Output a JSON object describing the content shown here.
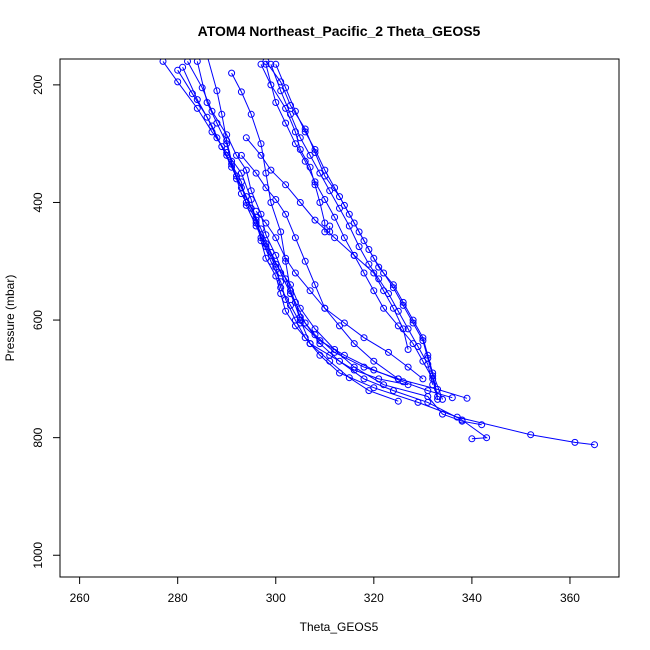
{
  "chart_data": {
    "type": "line",
    "title": "ATOM4 Northeast_Pacific_2 Theta_GEOS5",
    "xlabel": "Theta_GEOS5",
    "ylabel": "Pressure (mbar)",
    "xlim": [
      256,
      370
    ],
    "ylim": [
      1037,
      156
    ],
    "y_reversed": true,
    "x_ticks": [
      260,
      280,
      300,
      320,
      340,
      360
    ],
    "y_ticks": [
      200,
      400,
      600,
      800,
      1000
    ],
    "grid": false,
    "legend": "none",
    "marker": "open-circle",
    "color": "#0000ff",
    "series": [
      {
        "points": [
          [
            286,
            150
          ],
          [
            288,
            210
          ],
          [
            289,
            250
          ],
          [
            290,
            295
          ],
          [
            291,
            330
          ],
          [
            292,
            360
          ],
          [
            293,
            385
          ],
          [
            294,
            400
          ],
          [
            296,
            430
          ],
          [
            297,
            465
          ],
          [
            298,
            495
          ],
          [
            300,
            525
          ],
          [
            301,
            555
          ],
          [
            302,
            585
          ],
          [
            304,
            610
          ],
          [
            307,
            640
          ],
          [
            311,
            660
          ],
          [
            316,
            685
          ],
          [
            321,
            700
          ],
          [
            327,
            710
          ]
        ]
      },
      {
        "points": [
          [
            284,
            160
          ],
          [
            286,
            230
          ],
          [
            288,
            265
          ],
          [
            290,
            300
          ],
          [
            291,
            335
          ],
          [
            293,
            365
          ],
          [
            294,
            405
          ],
          [
            296,
            440
          ],
          [
            298,
            475
          ],
          [
            300,
            510
          ],
          [
            301,
            545
          ],
          [
            303,
            575
          ],
          [
            305,
            605
          ],
          [
            309,
            635
          ],
          [
            314,
            660
          ],
          [
            320,
            685
          ],
          [
            326,
            705
          ],
          [
            331,
            720
          ],
          [
            336,
            732
          ]
        ]
      },
      {
        "points": [
          [
            281,
            170
          ],
          [
            284,
            225
          ],
          [
            287,
            270
          ],
          [
            289,
            305
          ],
          [
            291,
            340
          ],
          [
            293,
            375
          ],
          [
            295,
            410
          ],
          [
            297,
            445
          ],
          [
            299,
            485
          ],
          [
            301,
            520
          ],
          [
            303,
            555
          ],
          [
            305,
            595
          ],
          [
            308,
            625
          ],
          [
            312,
            655
          ],
          [
            318,
            680
          ],
          [
            325,
            700
          ],
          [
            333,
            718
          ],
          [
            339,
            733
          ]
        ]
      },
      {
        "points": [
          [
            280,
            175
          ],
          [
            283,
            215
          ],
          [
            286,
            255
          ],
          [
            288,
            290
          ],
          [
            290,
            320
          ],
          [
            292,
            355
          ],
          [
            294,
            390
          ],
          [
            296,
            425
          ],
          [
            297,
            460
          ],
          [
            299,
            500
          ],
          [
            301,
            535
          ],
          [
            302,
            565
          ],
          [
            304,
            600
          ],
          [
            306,
            630
          ],
          [
            309,
            660
          ],
          [
            313,
            690
          ],
          [
            320,
            715
          ],
          [
            329,
            740
          ],
          [
            337,
            765
          ],
          [
            352,
            795
          ],
          [
            361,
            808
          ],
          [
            365,
            812
          ]
        ]
      },
      {
        "points": [
          [
            282,
            160
          ],
          [
            285,
            205
          ],
          [
            287,
            245
          ],
          [
            290,
            285
          ],
          [
            292,
            320
          ],
          [
            294,
            345
          ],
          [
            295,
            380
          ],
          [
            297,
            420
          ],
          [
            298,
            455
          ],
          [
            300,
            490
          ],
          [
            302,
            530
          ],
          [
            304,
            570
          ],
          [
            306,
            605
          ],
          [
            309,
            640
          ],
          [
            313,
            670
          ],
          [
            318,
            700
          ],
          [
            324,
            720
          ],
          [
            331,
            740
          ],
          [
            338,
            770
          ],
          [
            343,
            800
          ],
          [
            340,
            802
          ]
        ]
      },
      {
        "points": [
          [
            277,
            160
          ],
          [
            280,
            195
          ],
          [
            284,
            240
          ],
          [
            287,
            280
          ],
          [
            290,
            315
          ],
          [
            293,
            350
          ],
          [
            295,
            395
          ],
          [
            296,
            435
          ],
          [
            298,
            470
          ],
          [
            300,
            505
          ],
          [
            303,
            540
          ],
          [
            305,
            580
          ],
          [
            308,
            615
          ],
          [
            312,
            650
          ],
          [
            316,
            680
          ],
          [
            322,
            710
          ],
          [
            331,
            730
          ],
          [
            334,
            760
          ],
          [
            338,
            772
          ],
          [
            342,
            778
          ]
        ]
      },
      {
        "points": [
          [
            291,
            180
          ],
          [
            293,
            212
          ],
          [
            295,
            250
          ],
          [
            297,
            300
          ],
          [
            298,
            350
          ],
          [
            299,
            400
          ],
          [
            301,
            450
          ],
          [
            302,
            500
          ],
          [
            303,
            550
          ],
          [
            305,
            600
          ],
          [
            307,
            640
          ],
          [
            311,
            670
          ],
          [
            315,
            698
          ],
          [
            319,
            720
          ],
          [
            325,
            738
          ]
        ]
      },
      {
        "points": [
          [
            297,
            165
          ],
          [
            299,
            200
          ],
          [
            302,
            240
          ],
          [
            304,
            280
          ],
          [
            305,
            310
          ],
          [
            307,
            340
          ],
          [
            308,
            370
          ],
          [
            309,
            400
          ],
          [
            310,
            435
          ],
          [
            310,
            450
          ],
          [
            311,
            450
          ],
          [
            311,
            440
          ]
        ]
      },
      {
        "points": [
          [
            298,
            165
          ],
          [
            300,
            230
          ],
          [
            302,
            265
          ],
          [
            304,
            300
          ],
          [
            306,
            330
          ],
          [
            308,
            365
          ],
          [
            310,
            395
          ],
          [
            312,
            425
          ],
          [
            314,
            460
          ],
          [
            316,
            490
          ],
          [
            318,
            520
          ],
          [
            320,
            550
          ],
          [
            322,
            580
          ],
          [
            325,
            610
          ],
          [
            328,
            640
          ],
          [
            330,
            670
          ],
          [
            332,
            700
          ],
          [
            333,
            735
          ]
        ]
      },
      {
        "points": [
          [
            299,
            165
          ],
          [
            301,
            210
          ],
          [
            303,
            250
          ],
          [
            305,
            290
          ],
          [
            307,
            320
          ],
          [
            309,
            350
          ],
          [
            311,
            380
          ],
          [
            313,
            410
          ],
          [
            315,
            440
          ],
          [
            317,
            475
          ],
          [
            319,
            505
          ],
          [
            321,
            530
          ],
          [
            323,
            555
          ],
          [
            325,
            585
          ],
          [
            327,
            615
          ],
          [
            329,
            645
          ],
          [
            331,
            675
          ],
          [
            332,
            710
          ]
        ]
      },
      {
        "points": [
          [
            300,
            165
          ],
          [
            302,
            205
          ],
          [
            304,
            245
          ],
          [
            306,
            280
          ],
          [
            308,
            310
          ],
          [
            310,
            345
          ],
          [
            312,
            375
          ],
          [
            314,
            405
          ],
          [
            316,
            435
          ],
          [
            318,
            465
          ],
          [
            320,
            495
          ],
          [
            322,
            520
          ],
          [
            324,
            545
          ],
          [
            326,
            575
          ],
          [
            328,
            605
          ],
          [
            330,
            635
          ],
          [
            331,
            665
          ],
          [
            332,
            695
          ],
          [
            333,
            730
          ]
        ]
      },
      {
        "points": [
          [
            298,
            160
          ],
          [
            301,
            195
          ],
          [
            303,
            235
          ],
          [
            306,
            275
          ],
          [
            308,
            315
          ],
          [
            310,
            355
          ],
          [
            313,
            390
          ],
          [
            315,
            420
          ],
          [
            317,
            450
          ],
          [
            319,
            480
          ],
          [
            321,
            510
          ],
          [
            324,
            540
          ],
          [
            326,
            570
          ],
          [
            328,
            600
          ],
          [
            330,
            630
          ],
          [
            331,
            660
          ],
          [
            332,
            690
          ],
          [
            334,
            735
          ]
        ]
      },
      {
        "points": [
          [
            294,
            290
          ],
          [
            297,
            320
          ],
          [
            299,
            345
          ],
          [
            302,
            370
          ],
          [
            305,
            400
          ],
          [
            308,
            430
          ],
          [
            312,
            460
          ],
          [
            316,
            490
          ],
          [
            320,
            520
          ],
          [
            322,
            550
          ],
          [
            324,
            580
          ],
          [
            326,
            615
          ],
          [
            327,
            650
          ]
        ]
      },
      {
        "points": [
          [
            293,
            320
          ],
          [
            296,
            350
          ],
          [
            298,
            375
          ],
          [
            300,
            395
          ],
          [
            302,
            420
          ],
          [
            304,
            460
          ],
          [
            306,
            500
          ],
          [
            308,
            540
          ],
          [
            310,
            580
          ],
          [
            313,
            610
          ],
          [
            316,
            640
          ],
          [
            320,
            670
          ],
          [
            325,
            700
          ]
        ]
      },
      {
        "points": [
          [
            296,
            415
          ],
          [
            298,
            435
          ],
          [
            300,
            460
          ],
          [
            302,
            495
          ],
          [
            304,
            520
          ],
          [
            307,
            550
          ],
          [
            310,
            580
          ],
          [
            314,
            605
          ],
          [
            318,
            630
          ],
          [
            323,
            655
          ],
          [
            327,
            680
          ],
          [
            330,
            700
          ]
        ]
      }
    ]
  }
}
